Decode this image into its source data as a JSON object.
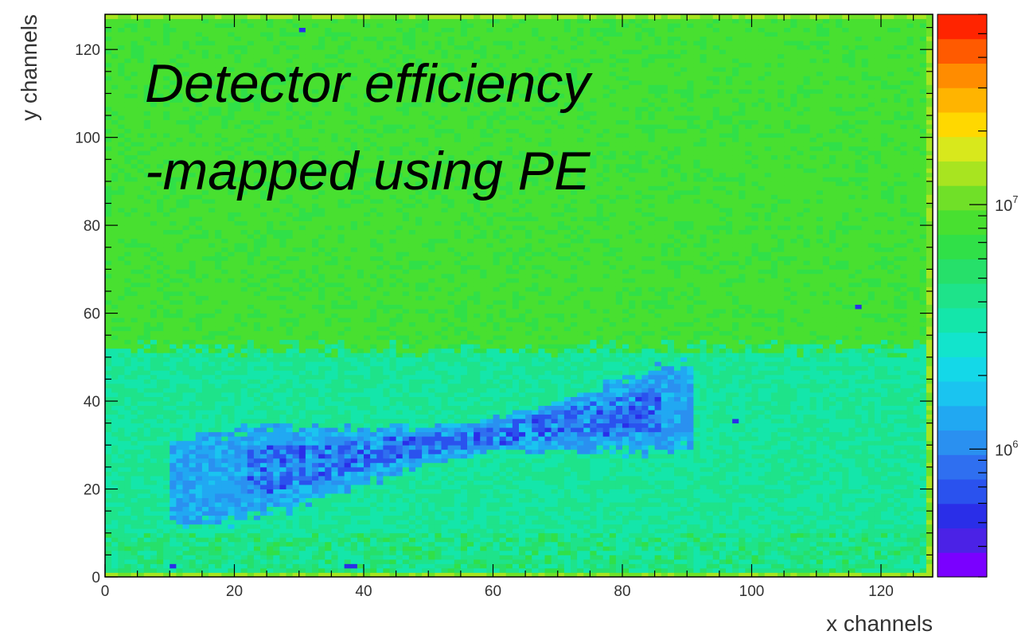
{
  "chart_data": {
    "type": "heatmap",
    "title": "",
    "annotation": {
      "line1": "Detector efficiency",
      "line2": "-mapped using PE"
    },
    "xlabel": "x channels",
    "ylabel": "y channels",
    "xlim": [
      0,
      128
    ],
    "ylim": [
      0,
      128
    ],
    "x_ticks": [
      0,
      20,
      40,
      60,
      80,
      100,
      120
    ],
    "y_ticks": [
      0,
      20,
      40,
      60,
      80,
      100,
      120
    ],
    "grid": false,
    "bins": {
      "nx": 128,
      "ny": 128
    },
    "z_scale": "log",
    "zlim": [
      300000,
      60000000
    ],
    "colorbar": {
      "placement": "right",
      "tick_labels": [
        {
          "value": 1000000,
          "base": "10",
          "exp": "6"
        },
        {
          "value": 10000000,
          "base": "10",
          "exp": "7"
        }
      ],
      "palette": [
        "#7a00ff",
        "#4b22e6",
        "#2a2ee8",
        "#2a52ee",
        "#2f6ff0",
        "#2a90f0",
        "#21a8f2",
        "#1ac4f0",
        "#14d8e8",
        "#12e4cc",
        "#14e6aa",
        "#1ee38a",
        "#26e06a",
        "#30e048",
        "#48e030",
        "#70e028",
        "#a8e420",
        "#d8e81c",
        "#ffd800",
        "#ffb400",
        "#ff8c00",
        "#ff5a00",
        "#ff2400"
      ]
    },
    "features": {
      "background_level": 8000000,
      "lower_band_level": 3800000,
      "low_efficiency_region_level": 1300000,
      "low_efficiency_region_core_level": 700000,
      "edge_row_level": 12000000,
      "isolated_low_pixels": [
        {
          "x": 30,
          "y": 124
        },
        {
          "x": 116,
          "y": 61
        },
        {
          "x": 97,
          "y": 35
        },
        {
          "x": 10,
          "y": 2
        },
        {
          "x": 37,
          "y": 2
        },
        {
          "x": 38,
          "y": 2
        }
      ]
    }
  }
}
